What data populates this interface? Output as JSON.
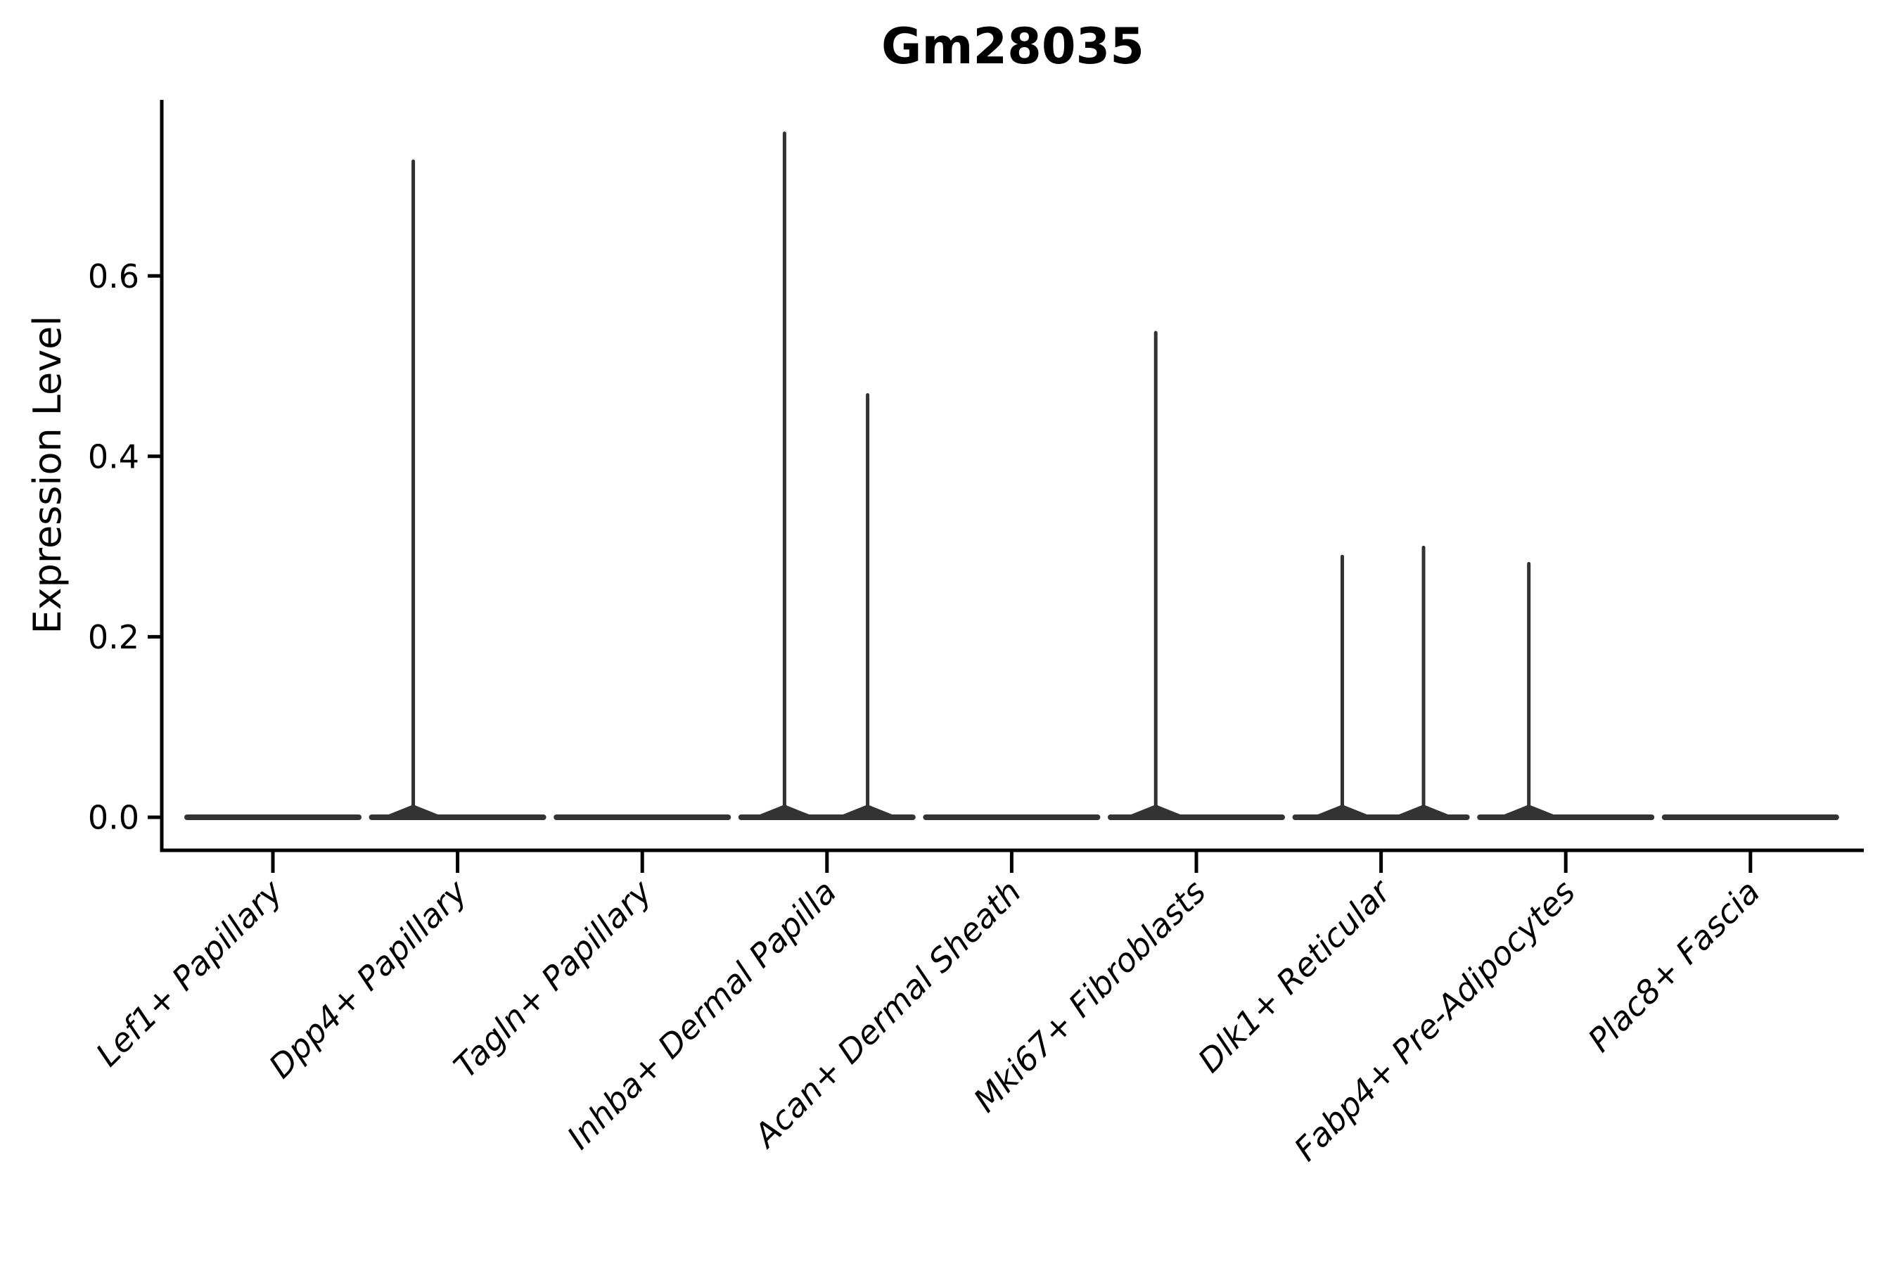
{
  "chart_data": {
    "type": "violin",
    "title": "Gm28035",
    "ylabel": "Expression Level",
    "xlabel": "",
    "ylim": [
      -0.037,
      0.795
    ],
    "yticks": [
      0.0,
      0.2,
      0.4,
      0.6
    ],
    "ytick_labels": [
      "0.0",
      "0.2",
      "0.4",
      "0.6"
    ],
    "grid": false,
    "legend_position": "none",
    "categories": [
      "Lef1+ Papillary",
      "Dpp4+ Papillary",
      "Tagln+ Papillary",
      "Inhba+ Dermal Papilla",
      "Acan+ Dermal Sheath",
      "Mki67+ Fibroblasts",
      "Dlk1+ Reticular",
      "Fabp4+ Pre-Adipocytes",
      "Plac8+ Fascia"
    ],
    "violins": [
      {
        "category": "Lef1+ Papillary",
        "body_value": 0,
        "spikes": []
      },
      {
        "category": "Dpp4+ Papillary",
        "body_value": 0,
        "spikes": [
          {
            "offset": -0.24,
            "max": 0.727
          }
        ]
      },
      {
        "category": "Tagln+ Papillary",
        "body_value": 0,
        "spikes": []
      },
      {
        "category": "Inhba+ Dermal Papilla",
        "body_value": 0,
        "spikes": [
          {
            "offset": -0.23,
            "max": 0.758
          },
          {
            "offset": 0.22,
            "max": 0.468
          }
        ]
      },
      {
        "category": "Acan+ Dermal Sheath",
        "body_value": 0,
        "spikes": []
      },
      {
        "category": "Mki67+ Fibroblasts",
        "body_value": 0,
        "spikes": [
          {
            "offset": -0.22,
            "max": 0.537
          }
        ]
      },
      {
        "category": "Dlk1+ Reticular",
        "body_value": 0,
        "spikes": [
          {
            "offset": -0.21,
            "max": 0.289
          },
          {
            "offset": 0.23,
            "max": 0.299
          }
        ]
      },
      {
        "category": "Fabp4+ Pre-Adipocytes",
        "body_value": 0,
        "spikes": [
          {
            "offset": -0.2,
            "max": 0.281
          }
        ]
      },
      {
        "category": "Plac8+ Fascia",
        "body_value": 0,
        "spikes": []
      }
    ],
    "colors": {
      "violin": "#333333",
      "axis": "#000000",
      "text": "#000000",
      "background": "#ffffff"
    }
  }
}
